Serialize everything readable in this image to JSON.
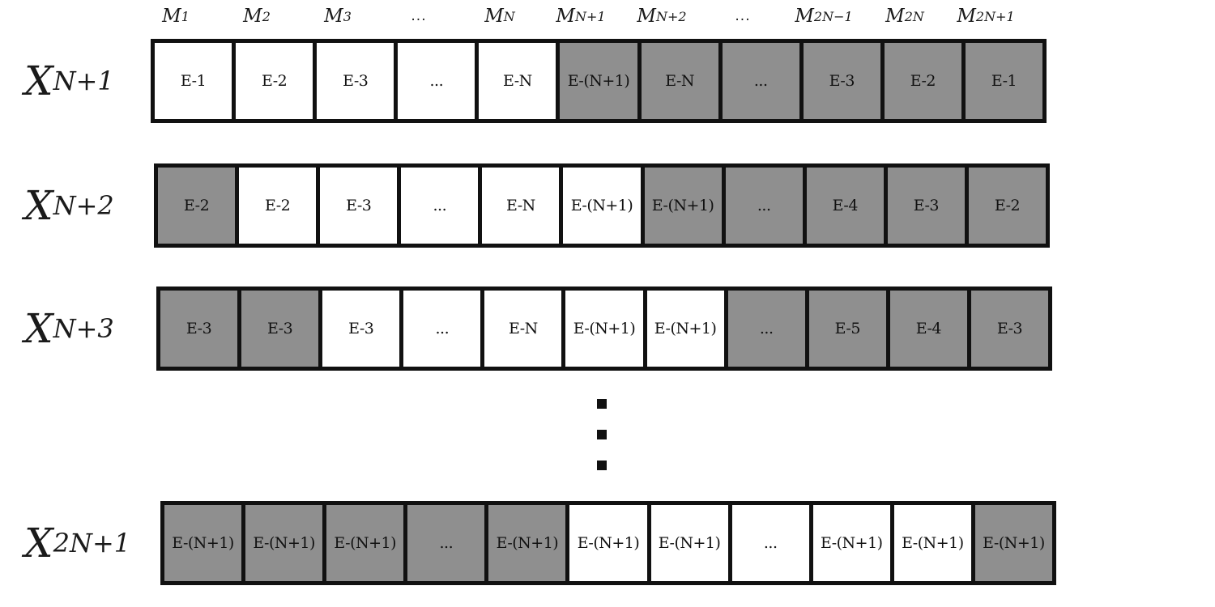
{
  "column_headers": [
    {
      "base": "M",
      "sub": "1"
    },
    {
      "base": "M",
      "sub": "2"
    },
    {
      "base": "M",
      "sub": "3"
    },
    {
      "dots": "..."
    },
    {
      "base": "M",
      "sub": "N"
    },
    {
      "base": "M",
      "sub": "N+1"
    },
    {
      "base": "M",
      "sub": "N+2"
    },
    {
      "dots": "..."
    },
    {
      "base": "M",
      "sub": "2N−1"
    },
    {
      "base": "M",
      "sub": "2N"
    },
    {
      "base": "M",
      "sub": "2N+1"
    }
  ],
  "rows": [
    {
      "label_base": "X",
      "label_sub": "N+1",
      "cells": [
        {
          "text": "E-1",
          "shade": "white"
        },
        {
          "text": "E-2",
          "shade": "white"
        },
        {
          "text": "E-3",
          "shade": "white"
        },
        {
          "text": "...",
          "shade": "white"
        },
        {
          "text": "E-N",
          "shade": "white"
        },
        {
          "text": "E-(N+1)",
          "shade": "gray"
        },
        {
          "text": "E-N",
          "shade": "gray"
        },
        {
          "text": "...",
          "shade": "gray"
        },
        {
          "text": "E-3",
          "shade": "gray"
        },
        {
          "text": "E-2",
          "shade": "gray"
        },
        {
          "text": "E-1",
          "shade": "gray"
        }
      ]
    },
    {
      "label_base": "X",
      "label_sub": "N+2",
      "cells": [
        {
          "text": "E-2",
          "shade": "gray"
        },
        {
          "text": "E-2",
          "shade": "white"
        },
        {
          "text": "E-3",
          "shade": "white"
        },
        {
          "text": "...",
          "shade": "white"
        },
        {
          "text": "E-N",
          "shade": "white"
        },
        {
          "text": "E-(N+1)",
          "shade": "white"
        },
        {
          "text": "E-(N+1)",
          "shade": "gray"
        },
        {
          "text": "...",
          "shade": "gray"
        },
        {
          "text": "E-4",
          "shade": "gray"
        },
        {
          "text": "E-3",
          "shade": "gray"
        },
        {
          "text": "E-2",
          "shade": "gray"
        }
      ]
    },
    {
      "label_base": "X",
      "label_sub": "N+3",
      "cells": [
        {
          "text": "E-3",
          "shade": "gray"
        },
        {
          "text": "E-3",
          "shade": "gray"
        },
        {
          "text": "E-3",
          "shade": "white"
        },
        {
          "text": "...",
          "shade": "white"
        },
        {
          "text": "E-N",
          "shade": "white"
        },
        {
          "text": "E-(N+1)",
          "shade": "white"
        },
        {
          "text": "E-(N+1)",
          "shade": "white"
        },
        {
          "text": "...",
          "shade": "gray"
        },
        {
          "text": "E-5",
          "shade": "gray"
        },
        {
          "text": "E-4",
          "shade": "gray"
        },
        {
          "text": "E-3",
          "shade": "gray"
        }
      ]
    },
    {
      "label_base": "X",
      "label_sub": "2N+1",
      "cells": [
        {
          "text": "E-(N+1)",
          "shade": "gray"
        },
        {
          "text": "E-(N+1)",
          "shade": "gray"
        },
        {
          "text": "E-(N+1)",
          "shade": "gray"
        },
        {
          "text": "...",
          "shade": "gray"
        },
        {
          "text": "E-(N+1)",
          "shade": "gray"
        },
        {
          "text": "E-(N+1)",
          "shade": "white"
        },
        {
          "text": "E-(N+1)",
          "shade": "white"
        },
        {
          "text": "...",
          "shade": "white"
        },
        {
          "text": "E-(N+1)",
          "shade": "white"
        },
        {
          "text": "E-(N+1)",
          "shade": "white"
        },
        {
          "text": "E-(N+1)",
          "shade": "gray"
        }
      ]
    }
  ],
  "colors": {
    "white_cell": "#ffffff",
    "gray_cell": "#8f8f8f",
    "border": "#111111"
  }
}
